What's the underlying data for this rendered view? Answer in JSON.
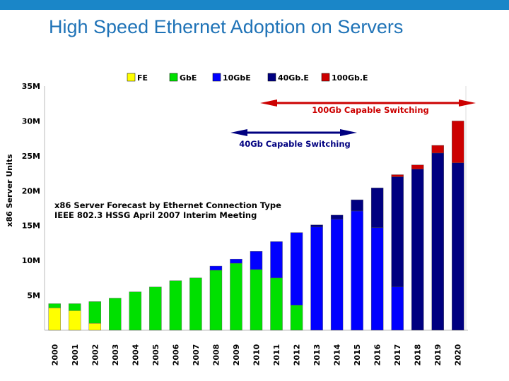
{
  "slide": {
    "title": "High Speed Ethernet  Adoption on Servers"
  },
  "chart_data": {
    "type": "bar",
    "stacked": true,
    "ylabel": "x86 Server Units",
    "ylim": [
      0,
      35
    ],
    "yticks": [
      5,
      10,
      15,
      20,
      25,
      30,
      35
    ],
    "ytick_labels": [
      "5M",
      "10M",
      "15M",
      "20M",
      "25M",
      "30M",
      "35M"
    ],
    "grid": false,
    "legend_position": "top",
    "categories": [
      "2000",
      "2001",
      "2002",
      "2003",
      "2004",
      "2005",
      "2006",
      "2007",
      "2008",
      "2009",
      "2010",
      "2011",
      "2012",
      "2013",
      "2014",
      "2015",
      "2016",
      "2017",
      "2018",
      "2019",
      "2020"
    ],
    "series": [
      {
        "name": "FE",
        "color": "#ffff00",
        "values": [
          3.2,
          2.8,
          1.0,
          0,
          0,
          0,
          0,
          0,
          0,
          0,
          0,
          0,
          0,
          0,
          0,
          0,
          0,
          0,
          0,
          0,
          0
        ]
      },
      {
        "name": "GbE",
        "color": "#00e000",
        "values": [
          0.6,
          1.0,
          3.1,
          4.6,
          5.5,
          6.2,
          7.1,
          7.5,
          8.6,
          9.6,
          8.7,
          7.5,
          3.6,
          0,
          0,
          0,
          0,
          0,
          0,
          0,
          0
        ]
      },
      {
        "name": "10GbE",
        "color": "#0000ff",
        "values": [
          0,
          0,
          0,
          0,
          0,
          0,
          0,
          0,
          0.6,
          0.6,
          2.6,
          5.2,
          10.4,
          14.8,
          15.9,
          17.1,
          14.7,
          6.2,
          0,
          0,
          0
        ]
      },
      {
        "name": "40Gb.E",
        "color": "#000080",
        "values": [
          0,
          0,
          0,
          0,
          0,
          0,
          0,
          0,
          0,
          0,
          0,
          0,
          0,
          0.3,
          0.6,
          1.6,
          5.7,
          15.8,
          23.1,
          25.4,
          24.0
        ]
      },
      {
        "name": "100Gb.E",
        "color": "#cc0000",
        "values": [
          0,
          0,
          0,
          0,
          0,
          0,
          0,
          0,
          0,
          0,
          0,
          0,
          0,
          0,
          0,
          0,
          0,
          0.3,
          0.6,
          1.1,
          6.0
        ]
      }
    ],
    "annotations": {
      "chart_title_line1": "x86 Server Forecast by Ethernet Connection Type",
      "chart_title_line2": "IEEE 802.3 HSSG  April 2007 Interim Meeting",
      "arrow_100g": {
        "label": "100Gb Capable Switching",
        "color": "#cc0000",
        "from": "2014",
        "to": "2020"
      },
      "arrow_40g": {
        "label": "40Gb Capable Switching",
        "color": "#000080",
        "from": "2010",
        "to": "2015"
      }
    }
  }
}
